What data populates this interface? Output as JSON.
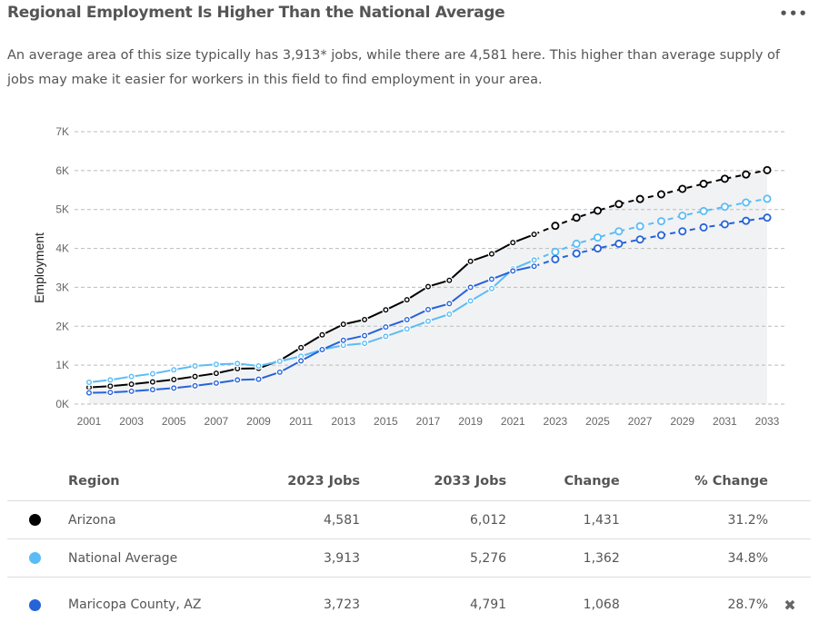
{
  "header": {
    "title": "Regional Employment Is Higher Than the National Average",
    "menu_label": "•••"
  },
  "description": "An average area of this size typically has 3,913* jobs, while there are 4,581 here. This higher than average supply of jobs may make it easier for workers in this field to find employment in your area.",
  "chart_data": {
    "type": "line",
    "ylabel": "Employment",
    "ylim": [
      0,
      7000
    ],
    "yticks": [
      "0K",
      "1K",
      "2K",
      "3K",
      "4K",
      "5K",
      "6K",
      "7K"
    ],
    "xticks": [
      "2001",
      "2003",
      "2005",
      "2007",
      "2009",
      "2011",
      "2013",
      "2015",
      "2017",
      "2019",
      "2021",
      "2023",
      "2025",
      "2027",
      "2029",
      "2031",
      "2033"
    ],
    "x": [
      2001,
      2002,
      2003,
      2004,
      2005,
      2006,
      2007,
      2008,
      2009,
      2010,
      2011,
      2012,
      2013,
      2014,
      2015,
      2016,
      2017,
      2018,
      2019,
      2020,
      2021,
      2022,
      2023,
      2024,
      2025,
      2026,
      2027,
      2028,
      2029,
      2030,
      2031,
      2032,
      2033
    ],
    "projection_start": 2022,
    "grid": true,
    "series": [
      {
        "name": "Arizona",
        "color": "#000000",
        "values": [
          430,
          460,
          510,
          570,
          630,
          710,
          790,
          910,
          920,
          1120,
          1450,
          1780,
          2050,
          2170,
          2420,
          2680,
          3020,
          3180,
          3670,
          3860,
          4150,
          4360,
          4581,
          4790,
          4970,
          5140,
          5270,
          5390,
          5530,
          5660,
          5790,
          5900,
          6012
        ]
      },
      {
        "name": "National Average",
        "color": "#5bbcf5",
        "values": [
          560,
          620,
          710,
          780,
          880,
          980,
          1020,
          1040,
          980,
          1100,
          1230,
          1400,
          1510,
          1560,
          1740,
          1930,
          2130,
          2310,
          2650,
          2970,
          3470,
          3700,
          3913,
          4120,
          4280,
          4440,
          4570,
          4700,
          4840,
          4960,
          5070,
          5180,
          5276
        ]
      },
      {
        "name": "Maricopa County, AZ",
        "color": "#2563d9",
        "values": [
          290,
          300,
          330,
          370,
          410,
          470,
          540,
          620,
          640,
          820,
          1110,
          1400,
          1640,
          1760,
          1980,
          2170,
          2430,
          2580,
          3000,
          3210,
          3420,
          3540,
          3723,
          3870,
          4000,
          4120,
          4230,
          4340,
          4440,
          4540,
          4620,
          4710,
          4791
        ]
      }
    ]
  },
  "table": {
    "headers": {
      "region": "Region",
      "jobs_2023": "2023 Jobs",
      "jobs_2033": "2033 Jobs",
      "change": "Change",
      "pct_change": "% Change"
    },
    "rows": [
      {
        "color": "#000000",
        "region": "Arizona",
        "jobs_2023": "4,581",
        "jobs_2033": "6,012",
        "change": "1,431",
        "pct_change": "31.2%"
      },
      {
        "color": "#5bbcf5",
        "region": "National Average",
        "jobs_2023": "3,913",
        "jobs_2033": "5,276",
        "change": "1,362",
        "pct_change": "34.8%"
      },
      {
        "color": "#2563d9",
        "region": "Maricopa County, AZ",
        "jobs_2023": "3,723",
        "jobs_2033": "4,791",
        "change": "1,068",
        "pct_change": "28.7%",
        "remove_icon": "✖"
      }
    ]
  }
}
